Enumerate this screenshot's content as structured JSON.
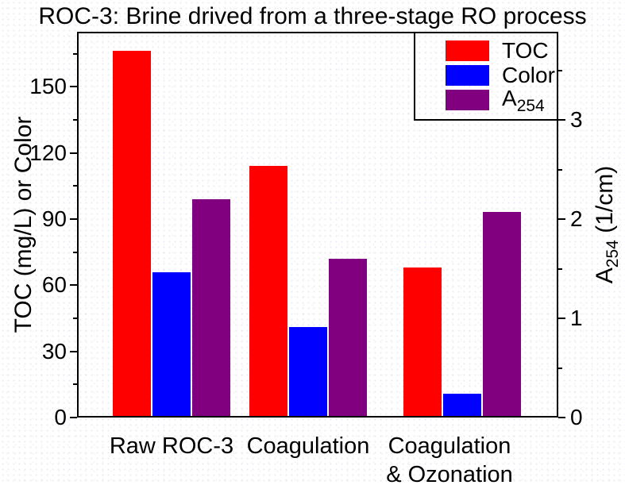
{
  "title": "ROC-3: Brine drived from a three-stage RO process",
  "chart_data": {
    "type": "bar",
    "title": "ROC-3: Brine drived from a three-stage RO process",
    "categories": [
      "Raw ROC-3",
      "Coagulation",
      "Coagulation & Ozonation"
    ],
    "category_display": [
      [
        "Raw ROC-3"
      ],
      [
        "Coagulation"
      ],
      [
        "Coagulation",
        "& Ozonation"
      ]
    ],
    "series": [
      {
        "name": "TOC",
        "axis": "left",
        "color": "#ff0000",
        "values": [
          166.5,
          114,
          68
        ]
      },
      {
        "name": "Color",
        "axis": "left",
        "color": "#0000ff",
        "values": [
          66,
          41,
          11
        ]
      },
      {
        "name": "A254",
        "axis": "right",
        "color": "#800080",
        "values": [
          2.2,
          1.6,
          2.07
        ]
      }
    ],
    "left_axis": {
      "label": "TOC (mg/L) or Color",
      "min": 0,
      "max": 175,
      "major_ticks": [
        0,
        30,
        60,
        90,
        120,
        150
      ],
      "minor_ticks": [
        15,
        45,
        75,
        105,
        135,
        165
      ]
    },
    "right_axis": {
      "label": "A254 (1/cm)",
      "label_main": "A",
      "label_sub": "254",
      "label_rest": "(1/cm)",
      "min": 0,
      "max": 3.888,
      "major_ticks": [
        0,
        1,
        2,
        3
      ],
      "minor_ticks": [
        0.5,
        1.5,
        2.5,
        3.5
      ]
    },
    "legend": {
      "position": "top-right",
      "items": [
        {
          "label": "TOC",
          "sub": "",
          "color": "#ff0000"
        },
        {
          "label": "Color",
          "sub": "",
          "color": "#0000ff"
        },
        {
          "label": "A",
          "sub": "254",
          "color": "#800080"
        }
      ]
    },
    "grid": false
  }
}
